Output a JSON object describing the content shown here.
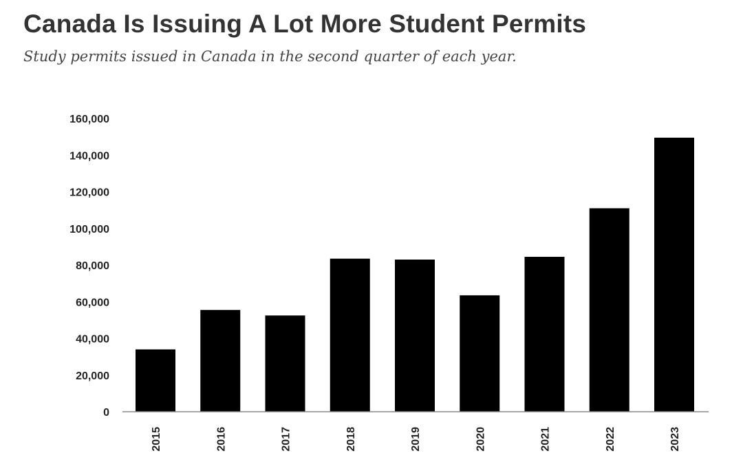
{
  "header": {
    "title": "Canada Is Issuing A Lot More Student Permits",
    "subtitle": "Study permits issued in Canada in the second quarter of each year."
  },
  "colors": {
    "bar": "#000000",
    "text": "#333333",
    "axis": "#888888"
  },
  "chart_data": {
    "type": "bar",
    "title": "Canada Is Issuing A Lot More Student Permits",
    "subtitle": "Study permits issued in Canada in the second quarter of each year.",
    "xlabel": "",
    "ylabel": "",
    "categories": [
      "2015",
      "2016",
      "2017",
      "2018",
      "2019",
      "2020",
      "2021",
      "2022",
      "2023"
    ],
    "values": [
      34000,
      55500,
      52500,
      83500,
      83000,
      63500,
      84500,
      111000,
      149500
    ],
    "ylim": [
      0,
      160000
    ],
    "yticks": [
      "0",
      "20,000",
      "40,000",
      "60,000",
      "80,000",
      "100,000",
      "120,000",
      "140,000",
      "160,000"
    ],
    "grid": false,
    "legend": "none"
  }
}
